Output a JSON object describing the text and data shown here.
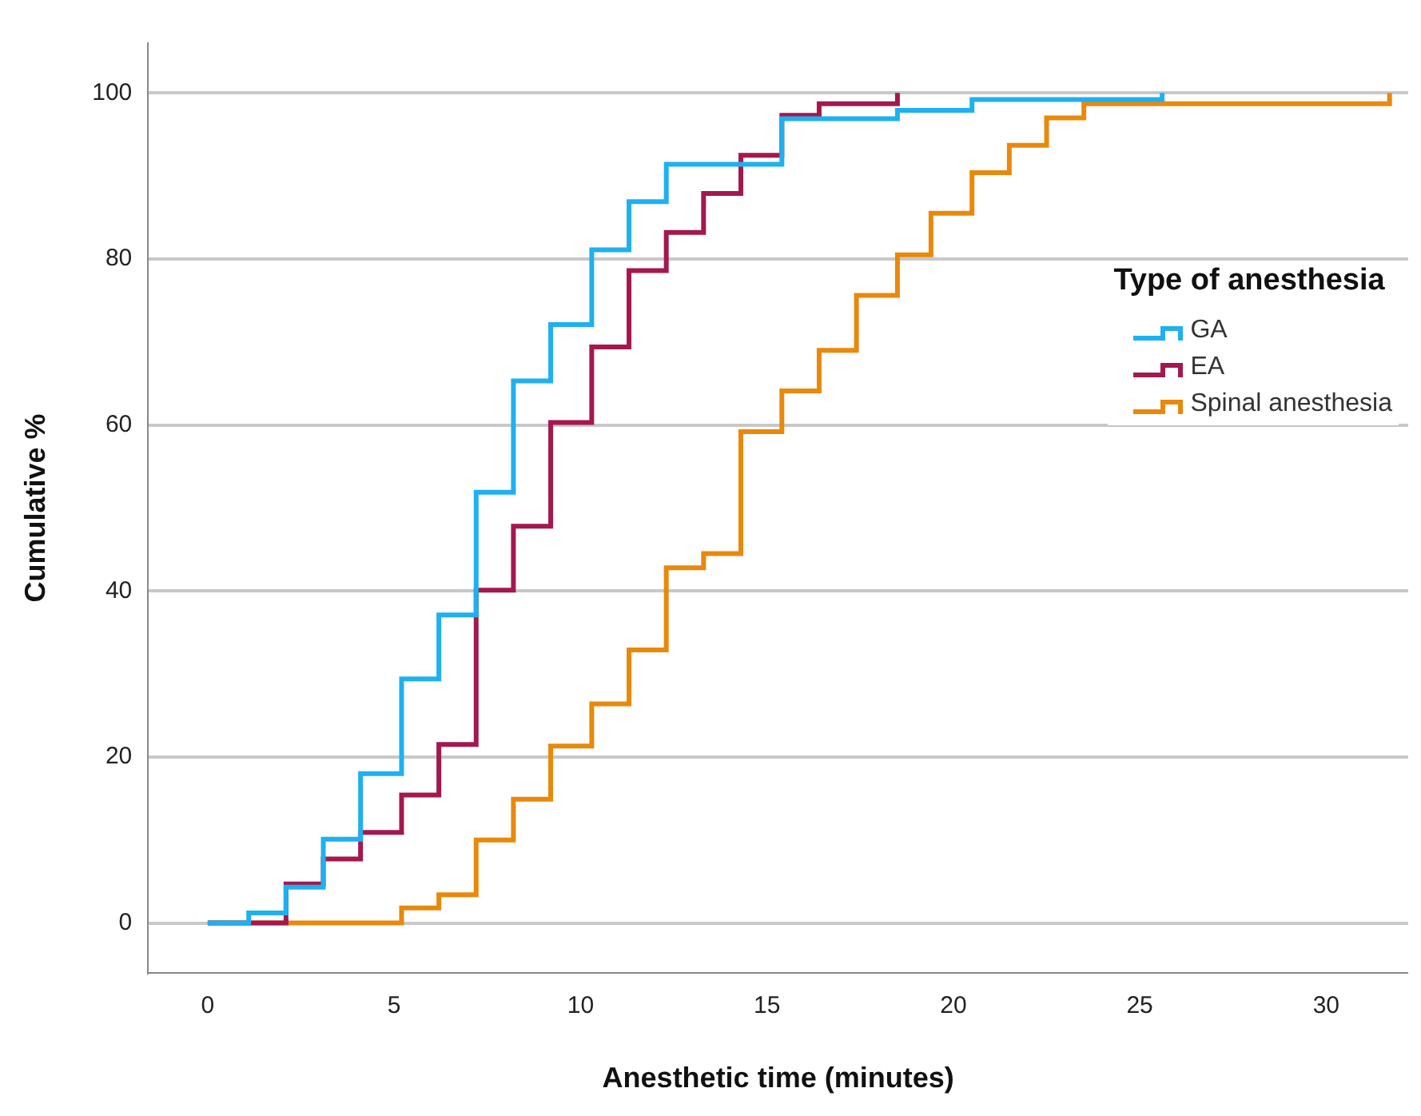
{
  "chart_data": {
    "type": "step",
    "xlabel": "Anesthetic time (minutes)",
    "ylabel": "Cumulative %",
    "legend_title": "Type of anesthesia",
    "xlim": [
      -1.6,
      32.2
    ],
    "xticks": [
      0,
      5,
      10,
      15,
      20,
      25,
      30
    ],
    "ylim": [
      -6,
      106
    ],
    "yticks": [
      0,
      20,
      40,
      60,
      80,
      100
    ],
    "grid": "y",
    "legend": "right",
    "series": [
      {
        "name": "GA",
        "color": "#1fb0f0",
        "x": [
          0,
          1.1,
          2.1,
          3.1,
          4.1,
          5.2,
          6.2,
          7.2,
          8.2,
          9.2,
          10.3,
          11.3,
          12.3,
          15.4,
          18.5,
          20.5,
          25.6
        ],
        "values": [
          0,
          1.2,
          4.3,
          10.1,
          18,
          29.4,
          37.1,
          51.9,
          65.3,
          72.1,
          81.1,
          86.9,
          91.4,
          96.9,
          97.9,
          99.2,
          100
        ]
      },
      {
        "name": "EA",
        "color": "#a3184f",
        "x": [
          0,
          2.1,
          3.1,
          4.1,
          5.2,
          6.2,
          7.2,
          8.2,
          9.2,
          10.3,
          11.3,
          12.3,
          13.3,
          14.3,
          15.4,
          16.4,
          18.5
        ],
        "values": [
          0,
          4.7,
          7.7,
          10.9,
          15.4,
          21.5,
          40.1,
          47.8,
          60.3,
          69.4,
          78.6,
          83.2,
          87.9,
          92.5,
          97.3,
          98.7,
          100
        ]
      },
      {
        "name": "Spinal anesthesia",
        "color": "#e8890c",
        "x": [
          0,
          5.2,
          6.2,
          7.2,
          8.2,
          9.2,
          10.3,
          11.3,
          12.3,
          13.3,
          14.3,
          15.4,
          16.4,
          17.4,
          18.5,
          19.4,
          20.5,
          21.5,
          22.5,
          23.5,
          31.7
        ],
        "values": [
          0,
          1.8,
          3.4,
          10,
          14.9,
          21.3,
          26.4,
          32.9,
          42.8,
          44.5,
          59.2,
          64.1,
          69,
          75.6,
          80.5,
          85.5,
          90.4,
          93.7,
          97,
          98.7,
          100
        ]
      }
    ]
  }
}
